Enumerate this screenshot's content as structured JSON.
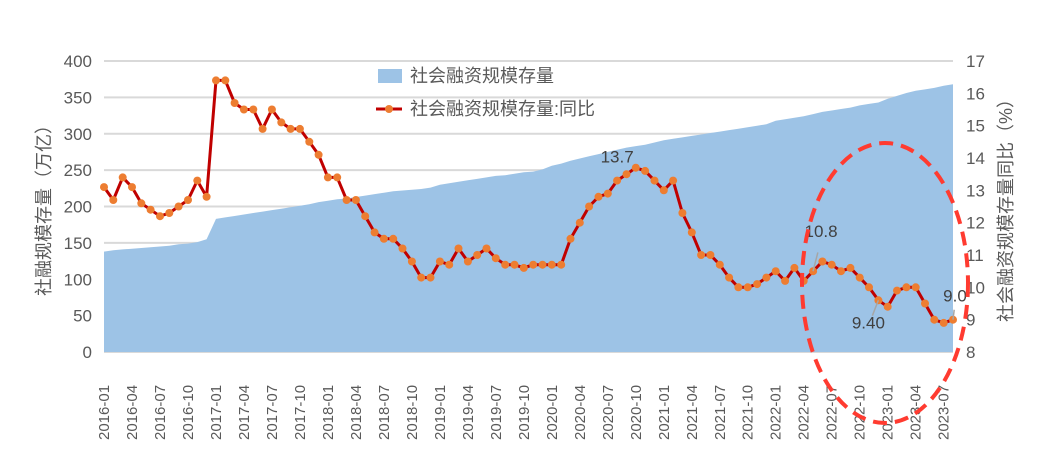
{
  "chart_data": {
    "type": "area+line",
    "title": "",
    "legend": [
      {
        "label": "社会融资规模存量",
        "type": "area",
        "color": "#9DC3E6"
      },
      {
        "label": "社会融资规模存量:同比",
        "type": "line",
        "color": "#C00000",
        "marker_color": "#ED7D31"
      }
    ],
    "left_axis": {
      "title": "社融规模存量（万亿）",
      "min": 0,
      "max": 400,
      "ticks": [
        0,
        50,
        100,
        150,
        200,
        250,
        300,
        350,
        400
      ]
    },
    "right_axis": {
      "title": "社会融资规模存量同比（%）",
      "min": 8,
      "max": 17,
      "ticks": [
        8,
        9,
        10,
        11,
        12,
        13,
        14,
        15,
        16,
        17
      ]
    },
    "x_tick_labels": [
      "2016-01",
      "2016-04",
      "2016-07",
      "2016-10",
      "2017-01",
      "2017-04",
      "2017-07",
      "2017-10",
      "2018-01",
      "2018-04",
      "2018-07",
      "2018-10",
      "2019-01",
      "2019-04",
      "2019-07",
      "2019-10",
      "2020-01",
      "2020-04",
      "2020-07",
      "2020-10",
      "2021-01",
      "2021-04",
      "2021-07",
      "2021-10",
      "2022-01",
      "2022-04",
      "2022-07",
      "2022-10",
      "2023-01",
      "2023-04",
      "2023-07"
    ],
    "x_start": "2016-01",
    "x_end": "2023-08",
    "grid": "horizontal",
    "legend_position": "top-center",
    "series": [
      {
        "name": "社会融资规模存量",
        "axis": "left",
        "values": [
          138,
          140,
          141,
          142,
          143,
          144,
          145,
          146,
          148,
          149,
          151,
          155,
          183,
          185,
          187,
          189,
          191,
          193,
          195,
          197,
          199,
          201,
          203,
          206,
          208,
          210,
          211,
          213,
          215,
          217,
          219,
          221,
          222,
          223,
          224,
          226,
          230,
          232,
          234,
          236,
          238,
          240,
          242,
          243,
          245,
          247,
          248,
          251,
          256,
          259,
          263,
          266,
          269,
          272,
          275,
          278,
          281,
          283,
          285,
          288,
          291,
          293,
          295,
          297,
          299,
          301,
          303,
          305,
          307,
          309,
          311,
          313,
          318,
          320,
          322,
          324,
          327,
          330,
          332,
          334,
          336,
          339,
          341,
          343,
          348,
          352,
          356,
          359,
          361,
          363,
          366,
          368
        ]
      },
      {
        "name": "社会融资规模存量:同比",
        "axis": "right",
        "values": [
          13.1,
          12.7,
          13.4,
          13.1,
          12.6,
          12.4,
          12.2,
          12.3,
          12.5,
          12.7,
          13.3,
          12.8,
          16.4,
          16.4,
          15.7,
          15.5,
          15.5,
          14.9,
          15.5,
          15.1,
          14.9,
          14.9,
          14.5,
          14.1,
          13.4,
          13.4,
          12.7,
          12.7,
          12.2,
          11.7,
          11.5,
          11.5,
          11.2,
          10.8,
          10.3,
          10.3,
          10.8,
          10.7,
          11.2,
          10.8,
          11.0,
          11.2,
          10.9,
          10.7,
          10.7,
          10.6,
          10.7,
          10.7,
          10.7,
          10.7,
          11.5,
          12.0,
          12.5,
          12.8,
          12.9,
          13.3,
          13.5,
          13.7,
          13.6,
          13.3,
          13.0,
          13.3,
          12.3,
          11.7,
          11.0,
          11.0,
          10.7,
          10.3,
          10.0,
          10.0,
          10.1,
          10.3,
          10.5,
          10.2,
          10.6,
          10.2,
          10.5,
          10.8,
          10.7,
          10.5,
          10.6,
          10.3,
          10.0,
          9.6,
          9.4,
          9.9,
          10.0,
          10.0,
          9.5,
          9.0,
          8.9,
          9.0
        ]
      }
    ],
    "annotations": [
      {
        "label": "13.7",
        "at": "2020-08"
      },
      {
        "label": "10.8",
        "at": "2022-05"
      },
      {
        "label": "9.40",
        "at": "2022-12"
      },
      {
        "label": "9.0",
        "at": "2023-08"
      }
    ],
    "highlight": {
      "shape": "dashed-ellipse",
      "color": "#FF3B30",
      "region": "2022-03 to 2023-08"
    }
  }
}
